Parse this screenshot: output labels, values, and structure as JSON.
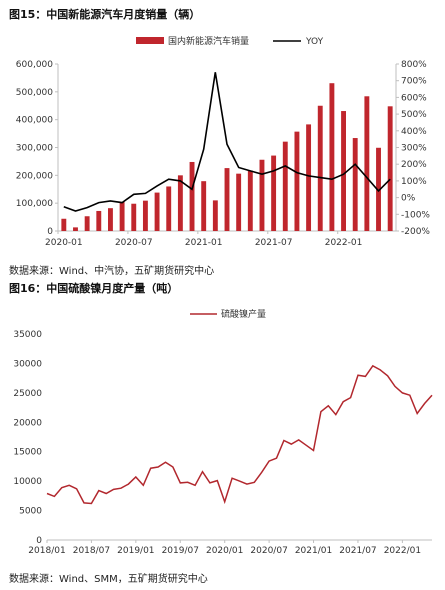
{
  "figures": [
    {
      "title": "图15：中国新能源汽车月度销量（辆）",
      "source": "数据来源：Wind、中汽协，五矿期货研究中心"
    },
    {
      "title": "图16：中国硫酸镍月度产量（吨）",
      "source": "数据来源：Wind、SMM，五矿期货研究中心"
    }
  ],
  "colors": {
    "bar": "#c0262d",
    "line_black": "#000000",
    "line_red": "#b2282e",
    "axis": "#bfbfbf"
  },
  "chart_data": [
    {
      "type": "bar",
      "title": "",
      "legend_placement": "top",
      "x_ticks": [
        "2020-01",
        "2020-07",
        "2021-01",
        "2021-07",
        "2022-01"
      ],
      "y_ticks_left": [
        "0",
        "100,000",
        "200,000",
        "300,000",
        "400,000",
        "500,000",
        "600,000"
      ],
      "y_ticks_right": [
        "-200%",
        "-100%",
        "0%",
        "100%",
        "200%",
        "300%",
        "400%",
        "500%",
        "600%",
        "700%",
        "800%"
      ],
      "ylim_left": [
        0,
        600000
      ],
      "ylim_right": [
        -200,
        800
      ],
      "series": [
        {
          "name": "国内新能源汽车销量",
          "type": "bar",
          "axis": "left",
          "values": [
            44000,
            13000,
            53000,
            72000,
            82000,
            104000,
            98000,
            109000,
            138000,
            160000,
            200000,
            248000,
            179000,
            110000,
            226000,
            206000,
            217000,
            256000,
            271000,
            321000,
            357000,
            383000,
            450000,
            531000,
            431000,
            334000,
            484000,
            299000,
            448000
          ]
        },
        {
          "name": "YOY",
          "type": "line",
          "axis": "right",
          "values": [
            -55,
            -80,
            -60,
            -30,
            -20,
            -30,
            20,
            25,
            70,
            110,
            100,
            50,
            290,
            750,
            320,
            180,
            160,
            140,
            160,
            190,
            150,
            130,
            120,
            110,
            140,
            200,
            120,
            40,
            110
          ]
        }
      ]
    },
    {
      "type": "line",
      "title": "",
      "legend_placement": "top",
      "x_ticks": [
        "2018/01",
        "2018/07",
        "2019/01",
        "2019/07",
        "2020/01",
        "2020/07",
        "2021/01",
        "2021/07",
        "2022/01"
      ],
      "y_ticks": [
        "0",
        "5000",
        "10000",
        "15000",
        "20000",
        "25000",
        "30000",
        "35000"
      ],
      "ylim": [
        0,
        35000
      ],
      "series": [
        {
          "name": "硫酸镍产量",
          "values": [
            7900,
            7400,
            8900,
            9300,
            8700,
            6300,
            6200,
            8400,
            7900,
            8600,
            8800,
            9500,
            10700,
            9300,
            12200,
            12400,
            13200,
            12400,
            9700,
            9800,
            9300,
            11600,
            9700,
            10100,
            6500,
            10500,
            10000,
            9500,
            9800,
            11500,
            13400,
            13900,
            16900,
            16300,
            17000,
            16100,
            15200,
            21800,
            22800,
            21300,
            23500,
            24200,
            28000,
            27800,
            29600,
            28900,
            27900,
            26100,
            25000,
            24600,
            21500,
            23200,
            24600
          ]
        }
      ]
    }
  ]
}
